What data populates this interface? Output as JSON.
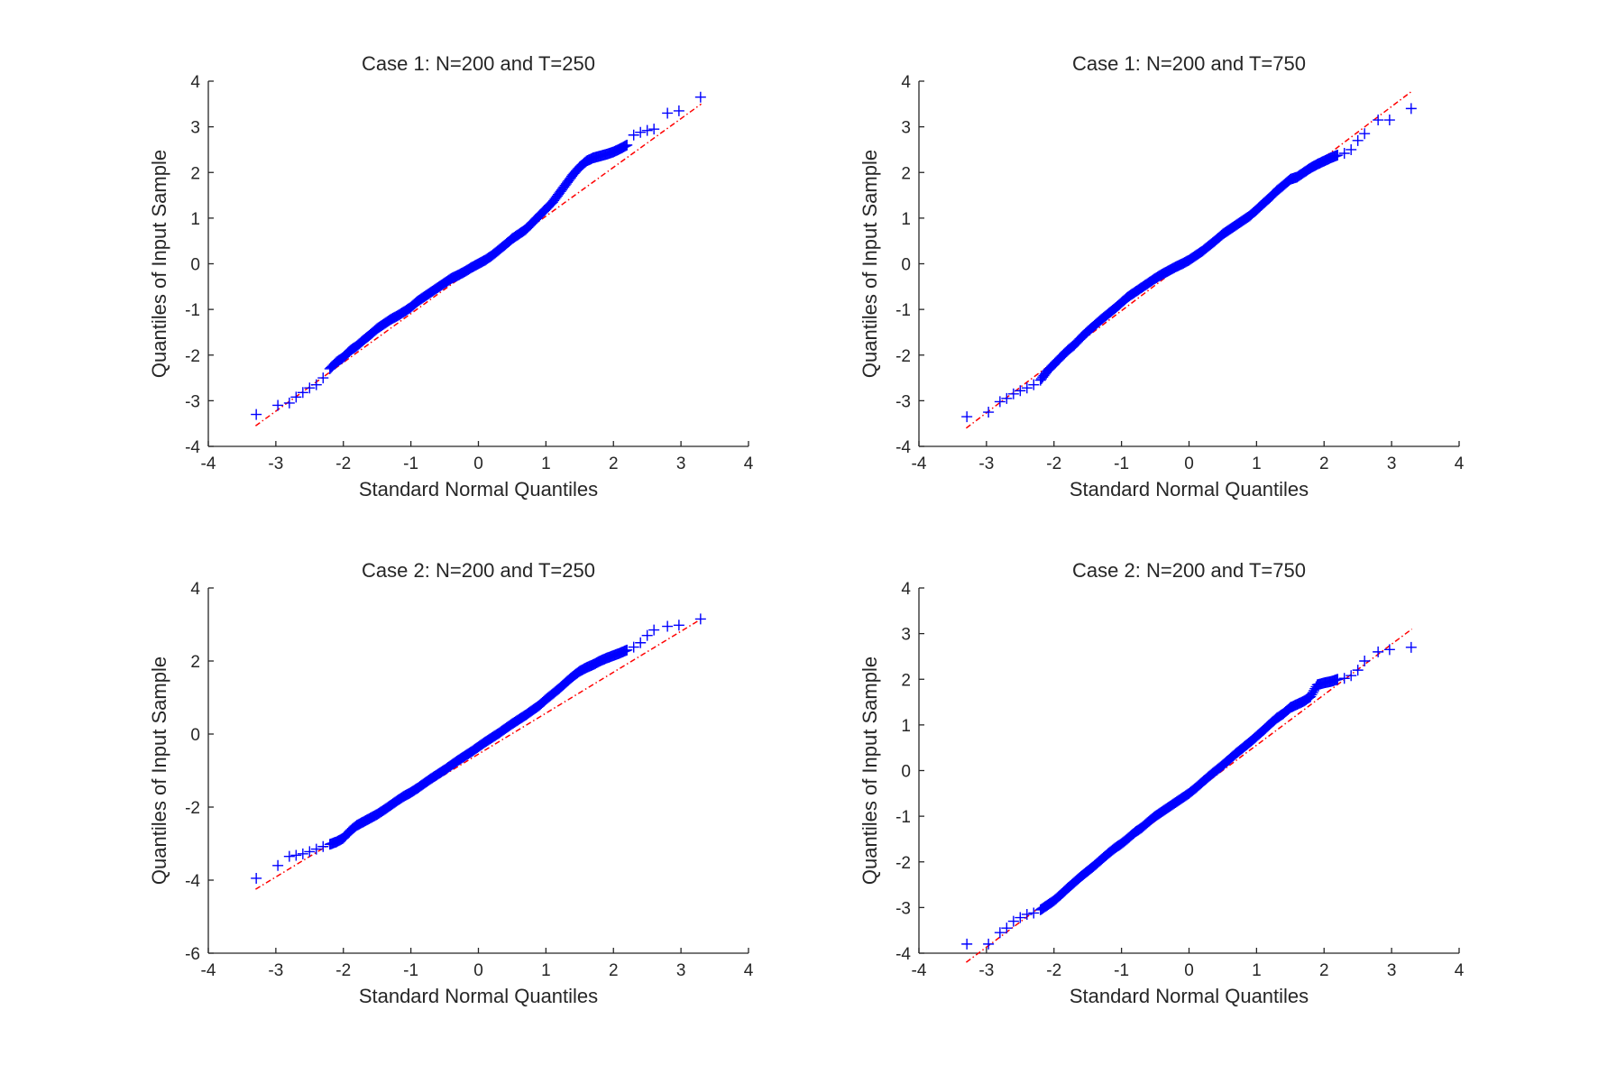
{
  "chart_data": [
    {
      "type": "scatter",
      "title": "Case 1: N=200 and  T=250",
      "xlabel": "Standard Normal Quantiles",
      "ylabel": "Quantiles of Input Sample",
      "xlim": [
        -4,
        4
      ],
      "ylim": [
        -4,
        4
      ],
      "xticks": [
        "-4",
        "-3",
        "-2",
        "-1",
        "0",
        "1",
        "2",
        "3",
        "4"
      ],
      "yticks": [
        "-4",
        "-3",
        "-2",
        "-1",
        "0",
        "1",
        "2",
        "3",
        "4"
      ],
      "grid": false,
      "legend": "none",
      "marker_color": "#0000ff",
      "line_color": "#ff0000",
      "reference_line": {
        "x": [
          -3.3,
          3.3
        ],
        "y": [
          -3.55,
          3.5
        ]
      },
      "points": {
        "x": [
          -3.29,
          -2.97,
          -2.8,
          -2.7,
          -2.6,
          -2.5,
          -2.4,
          -2.3,
          -2.2,
          -2.1,
          -2.0,
          -1.9,
          -1.8,
          -1.7,
          -1.6,
          -1.5,
          -1.4,
          -1.3,
          -1.2,
          -1.1,
          -1.0,
          -0.9,
          -0.8,
          -0.7,
          -0.6,
          -0.5,
          -0.4,
          -0.3,
          -0.2,
          -0.1,
          0.0,
          0.1,
          0.2,
          0.3,
          0.4,
          0.5,
          0.6,
          0.7,
          0.8,
          0.9,
          1.0,
          1.1,
          1.2,
          1.3,
          1.4,
          1.5,
          1.6,
          1.7,
          1.8,
          1.9,
          2.0,
          2.1,
          2.2,
          2.3,
          2.4,
          2.5,
          2.6,
          2.8,
          2.97,
          3.29
        ],
        "y": [
          -3.3,
          -3.1,
          -3.05,
          -2.92,
          -2.82,
          -2.72,
          -2.65,
          -2.5,
          -2.3,
          -2.15,
          -2.05,
          -1.9,
          -1.8,
          -1.67,
          -1.55,
          -1.42,
          -1.32,
          -1.22,
          -1.14,
          -1.05,
          -0.95,
          -0.82,
          -0.72,
          -0.62,
          -0.52,
          -0.42,
          -0.32,
          -0.25,
          -0.17,
          -0.08,
          0.0,
          0.08,
          0.18,
          0.3,
          0.42,
          0.55,
          0.65,
          0.75,
          0.9,
          1.05,
          1.2,
          1.35,
          1.55,
          1.75,
          1.95,
          2.12,
          2.25,
          2.32,
          2.36,
          2.4,
          2.45,
          2.52,
          2.6,
          2.82,
          2.88,
          2.92,
          2.95,
          3.3,
          3.35,
          3.65
        ]
      }
    },
    {
      "type": "scatter",
      "title": "Case 1: N=200 and  T=750",
      "xlabel": "Standard Normal Quantiles",
      "ylabel": "Quantiles of Input Sample",
      "xlim": [
        -4,
        4
      ],
      "ylim": [
        -4,
        4
      ],
      "xticks": [
        "-4",
        "-3",
        "-2",
        "-1",
        "0",
        "1",
        "2",
        "3",
        "4"
      ],
      "yticks": [
        "-4",
        "-3",
        "-2",
        "-1",
        "0",
        "1",
        "2",
        "3",
        "4"
      ],
      "grid": false,
      "legend": "none",
      "marker_color": "#0000ff",
      "line_color": "#ff0000",
      "reference_line": {
        "x": [
          -3.3,
          3.3
        ],
        "y": [
          -3.6,
          3.78
        ]
      },
      "points": {
        "x": [
          -3.29,
          -2.97,
          -2.8,
          -2.7,
          -2.6,
          -2.5,
          -2.4,
          -2.3,
          -2.2,
          -2.1,
          -2.0,
          -1.9,
          -1.8,
          -1.7,
          -1.6,
          -1.5,
          -1.4,
          -1.3,
          -1.2,
          -1.1,
          -1.0,
          -0.9,
          -0.8,
          -0.7,
          -0.6,
          -0.5,
          -0.4,
          -0.3,
          -0.2,
          -0.1,
          0.0,
          0.1,
          0.2,
          0.3,
          0.4,
          0.5,
          0.6,
          0.7,
          0.8,
          0.9,
          1.0,
          1.1,
          1.2,
          1.3,
          1.4,
          1.5,
          1.6,
          1.7,
          1.8,
          1.9,
          2.0,
          2.1,
          2.2,
          2.3,
          2.4,
          2.5,
          2.6,
          2.8,
          2.97,
          3.29
        ],
        "y": [
          -3.35,
          -3.25,
          -3.02,
          -2.95,
          -2.85,
          -2.78,
          -2.72,
          -2.65,
          -2.55,
          -2.35,
          -2.2,
          -2.05,
          -1.9,
          -1.78,
          -1.62,
          -1.48,
          -1.35,
          -1.22,
          -1.1,
          -0.98,
          -0.85,
          -0.72,
          -0.62,
          -0.52,
          -0.42,
          -0.32,
          -0.23,
          -0.15,
          -0.07,
          0.0,
          0.08,
          0.18,
          0.28,
          0.4,
          0.52,
          0.65,
          0.75,
          0.85,
          0.95,
          1.05,
          1.18,
          1.32,
          1.45,
          1.6,
          1.72,
          1.85,
          1.9,
          2.0,
          2.1,
          2.18,
          2.25,
          2.32,
          2.38,
          2.42,
          2.5,
          2.7,
          2.85,
          3.15,
          3.15,
          3.4
        ]
      }
    },
    {
      "type": "scatter",
      "title": "Case 2: N=200 and  T=250",
      "xlabel": "Standard Normal Quantiles",
      "ylabel": "Quantiles of Input Sample",
      "xlim": [
        -4,
        4
      ],
      "ylim": [
        -6,
        4
      ],
      "xticks": [
        "-4",
        "-3",
        "-2",
        "-1",
        "0",
        "1",
        "2",
        "3",
        "4"
      ],
      "yticks": [
        "-6",
        "-4",
        "-2",
        "0",
        "2",
        "4"
      ],
      "grid": false,
      "legend": "none",
      "marker_color": "#0000ff",
      "line_color": "#ff0000",
      "reference_line": {
        "x": [
          -3.3,
          3.3
        ],
        "y": [
          -4.25,
          3.15
        ]
      },
      "points": {
        "x": [
          -3.29,
          -2.97,
          -2.8,
          -2.7,
          -2.6,
          -2.5,
          -2.4,
          -2.3,
          -2.2,
          -2.1,
          -2.0,
          -1.9,
          -1.8,
          -1.7,
          -1.6,
          -1.5,
          -1.4,
          -1.3,
          -1.2,
          -1.1,
          -1.0,
          -0.9,
          -0.8,
          -0.7,
          -0.6,
          -0.5,
          -0.4,
          -0.3,
          -0.2,
          -0.1,
          0.0,
          0.1,
          0.2,
          0.3,
          0.4,
          0.5,
          0.6,
          0.7,
          0.8,
          0.9,
          1.0,
          1.1,
          1.2,
          1.3,
          1.4,
          1.5,
          1.6,
          1.7,
          1.8,
          1.9,
          2.0,
          2.1,
          2.2,
          2.3,
          2.4,
          2.5,
          2.6,
          2.8,
          2.97,
          3.29
        ],
        "y": [
          -3.95,
          -3.6,
          -3.35,
          -3.32,
          -3.28,
          -3.22,
          -3.15,
          -3.08,
          -3.02,
          -2.95,
          -2.85,
          -2.65,
          -2.5,
          -2.4,
          -2.3,
          -2.2,
          -2.08,
          -1.95,
          -1.82,
          -1.7,
          -1.6,
          -1.48,
          -1.35,
          -1.22,
          -1.1,
          -0.98,
          -0.85,
          -0.72,
          -0.6,
          -0.48,
          -0.35,
          -0.22,
          -0.1,
          0.02,
          0.15,
          0.28,
          0.4,
          0.52,
          0.65,
          0.78,
          0.95,
          1.1,
          1.25,
          1.42,
          1.58,
          1.72,
          1.82,
          1.9,
          2.0,
          2.08,
          2.15,
          2.22,
          2.3,
          2.38,
          2.5,
          2.7,
          2.85,
          2.95,
          2.98,
          3.15
        ]
      }
    },
    {
      "type": "scatter",
      "title": "Case 2: N=200 and  T=750",
      "xlabel": "Standard Normal Quantiles",
      "ylabel": "Quantiles of Input Sample",
      "xlim": [
        -4,
        4
      ],
      "ylim": [
        -4,
        4
      ],
      "xticks": [
        "-4",
        "-3",
        "-2",
        "-1",
        "0",
        "1",
        "2",
        "3",
        "4"
      ],
      "yticks": [
        "-4",
        "-3",
        "-2",
        "-1",
        "0",
        "1",
        "2",
        "3",
        "4"
      ],
      "grid": false,
      "legend": "none",
      "marker_color": "#0000ff",
      "line_color": "#ff0000",
      "reference_line": {
        "x": [
          -3.3,
          3.3
        ],
        "y": [
          -4.2,
          3.1
        ]
      },
      "points": {
        "x": [
          -3.29,
          -2.97,
          -2.8,
          -2.7,
          -2.6,
          -2.5,
          -2.4,
          -2.3,
          -2.2,
          -2.1,
          -2.0,
          -1.9,
          -1.8,
          -1.7,
          -1.6,
          -1.5,
          -1.4,
          -1.3,
          -1.2,
          -1.1,
          -1.0,
          -0.9,
          -0.8,
          -0.7,
          -0.6,
          -0.5,
          -0.4,
          -0.3,
          -0.2,
          -0.1,
          0.0,
          0.1,
          0.2,
          0.3,
          0.4,
          0.5,
          0.6,
          0.7,
          0.8,
          0.9,
          1.0,
          1.1,
          1.2,
          1.3,
          1.4,
          1.5,
          1.6,
          1.7,
          1.8,
          1.9,
          2.0,
          2.1,
          2.2,
          2.3,
          2.4,
          2.5,
          2.6,
          2.8,
          2.97,
          3.29
        ],
        "y": [
          -3.8,
          -3.8,
          -3.55,
          -3.45,
          -3.3,
          -3.22,
          -3.15,
          -3.12,
          -3.05,
          -2.95,
          -2.85,
          -2.72,
          -2.58,
          -2.45,
          -2.32,
          -2.2,
          -2.08,
          -1.95,
          -1.82,
          -1.7,
          -1.6,
          -1.48,
          -1.35,
          -1.25,
          -1.12,
          -1.0,
          -0.9,
          -0.8,
          -0.7,
          -0.6,
          -0.5,
          -0.38,
          -0.25,
          -0.12,
          0.0,
          0.12,
          0.25,
          0.38,
          0.5,
          0.62,
          0.75,
          0.88,
          1.02,
          1.15,
          1.25,
          1.38,
          1.45,
          1.52,
          1.62,
          1.88,
          1.92,
          1.95,
          2.0,
          2.02,
          2.08,
          2.2,
          2.4,
          2.6,
          2.65,
          2.7
        ]
      }
    }
  ]
}
